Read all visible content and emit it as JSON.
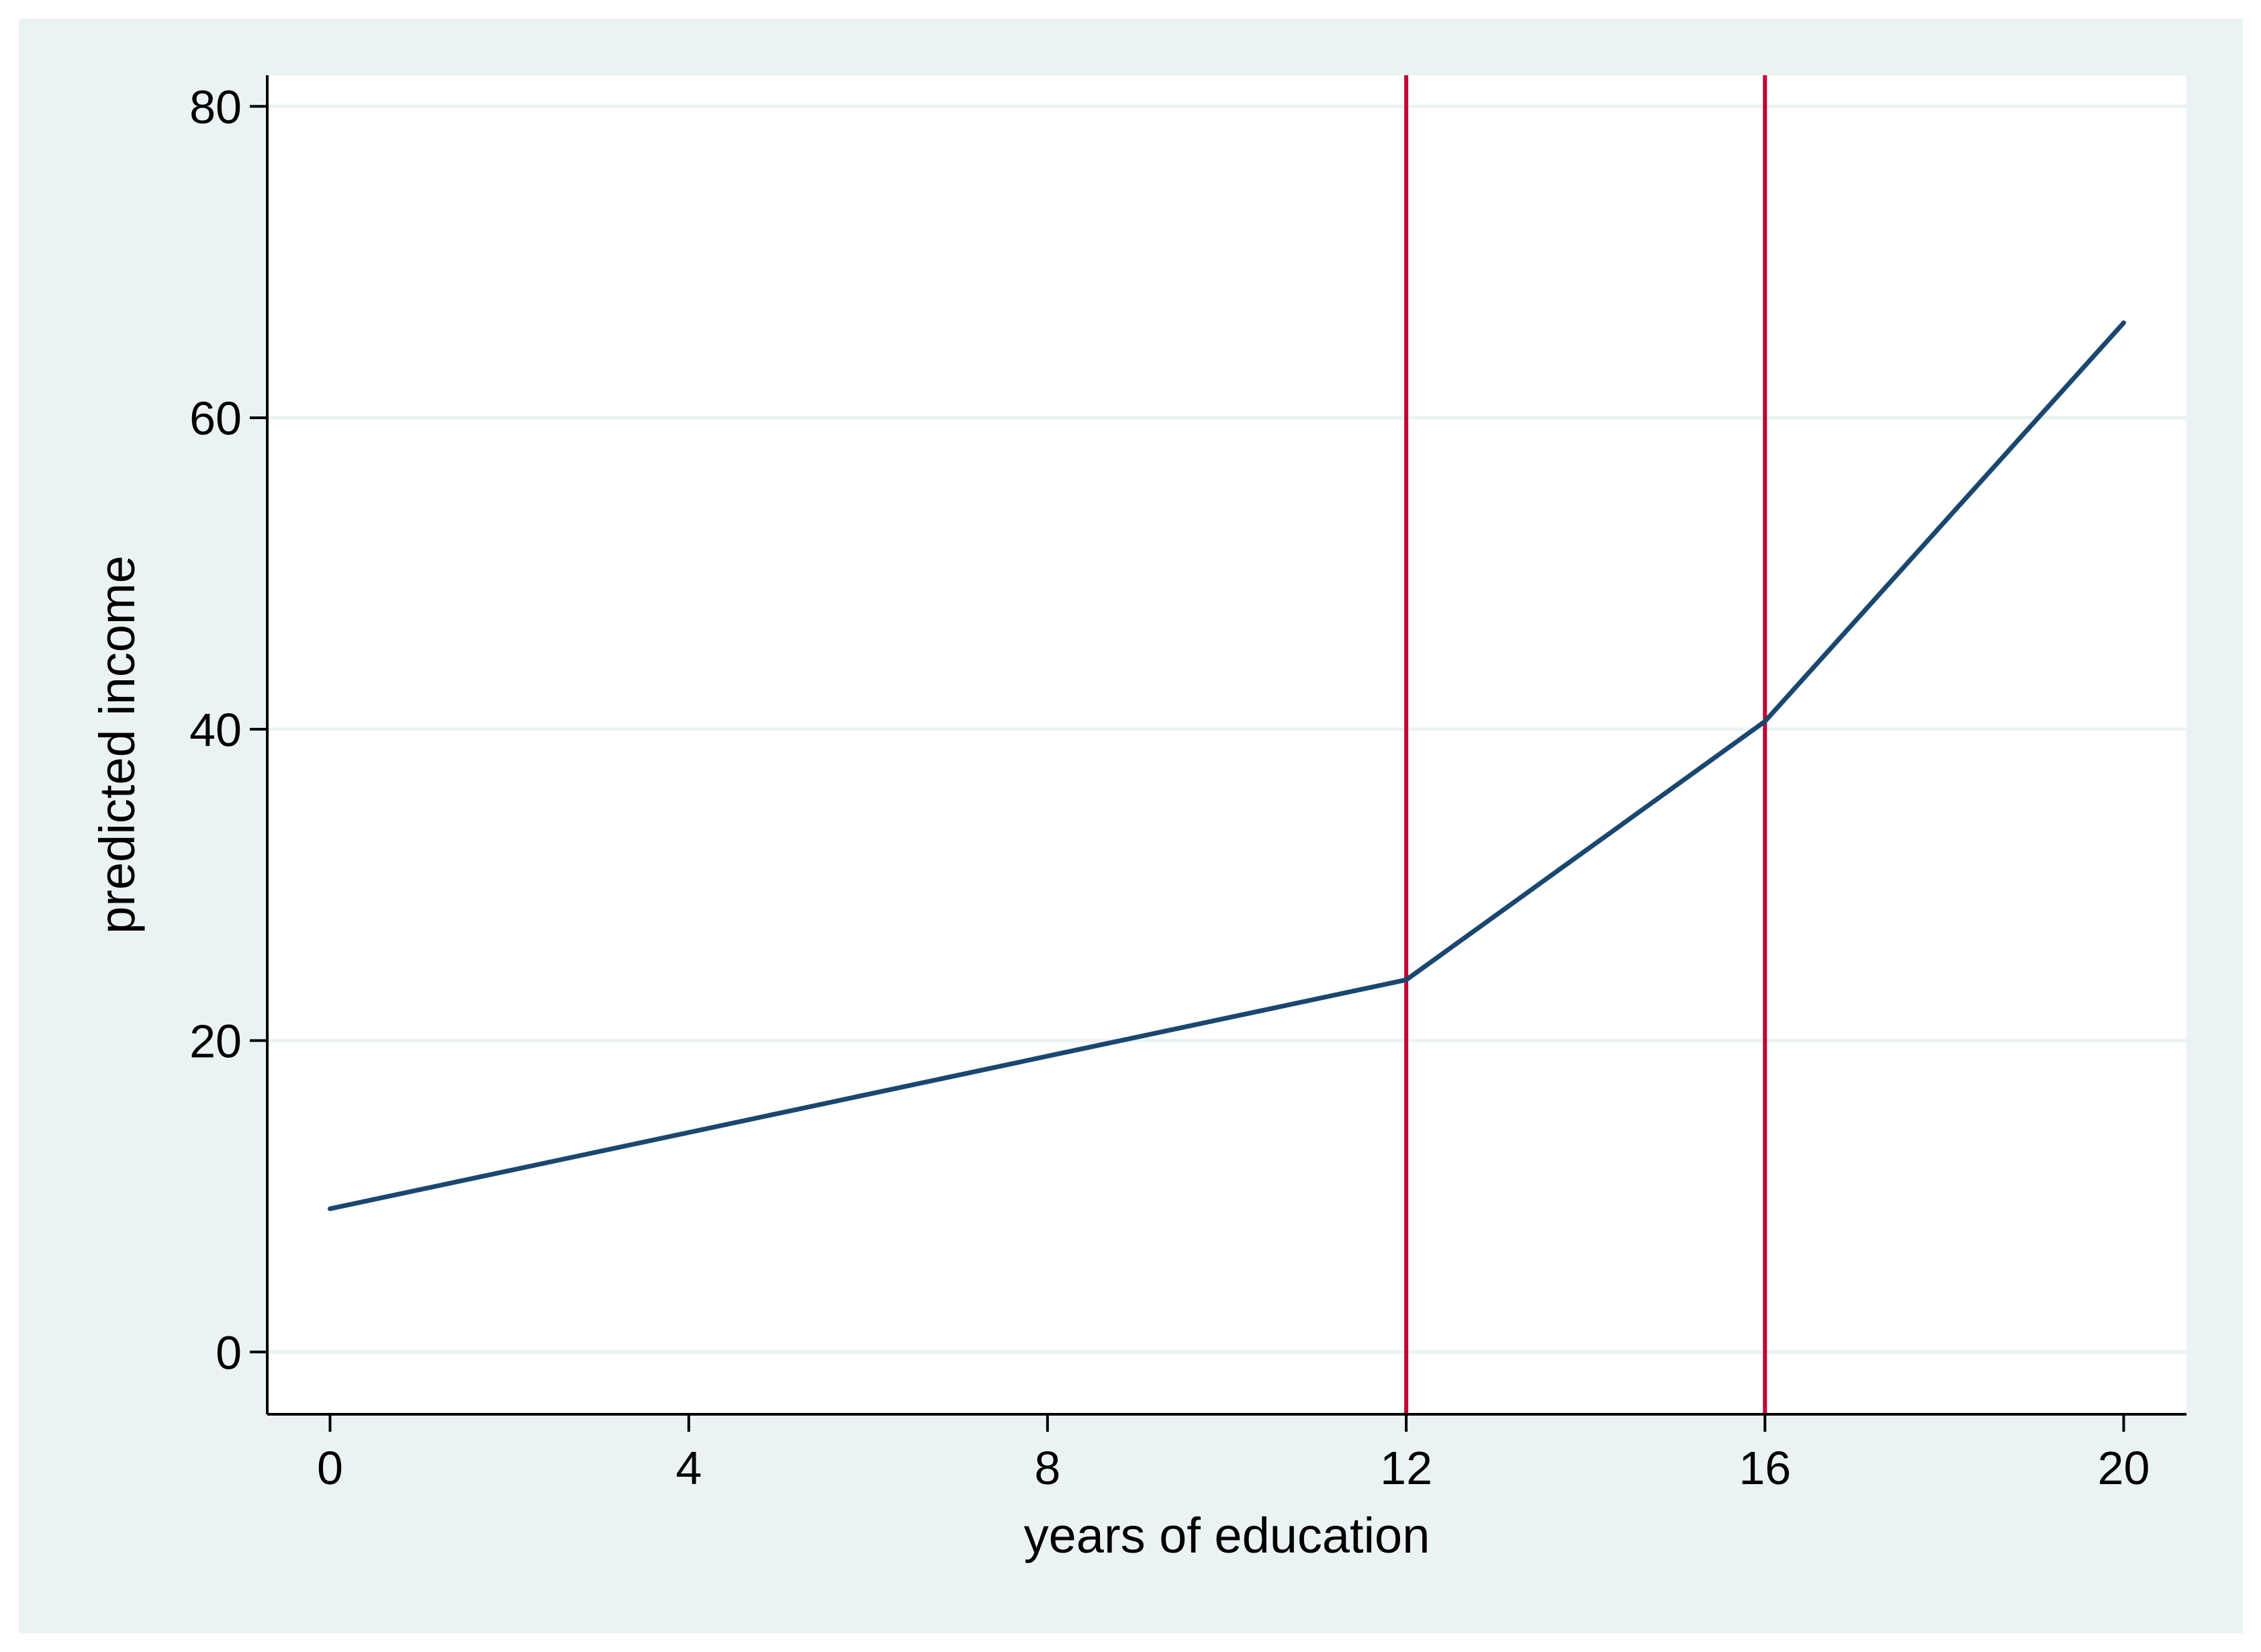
{
  "chart_data": {
    "type": "line",
    "title": "",
    "xlabel": "years of education",
    "ylabel": "predicted income",
    "xlim": [
      -0.7,
      20.7
    ],
    "ylim": [
      -4,
      82
    ],
    "xticks": [
      0,
      4,
      8,
      12,
      16,
      20
    ],
    "yticks": [
      0,
      20,
      40,
      60,
      80
    ],
    "x_tick_labels": [
      "0",
      "4",
      "8",
      "12",
      "16",
      "20"
    ],
    "y_tick_labels": [
      "0",
      "20",
      "40",
      "60",
      "80"
    ],
    "grid": "horizontal",
    "legend": "none",
    "series": [
      {
        "x": [
          0,
          12,
          16,
          20
        ],
        "y": [
          9.2,
          23.9,
          40.5,
          66.1
        ],
        "color": "#1a476f"
      }
    ],
    "reference_lines": [
      {
        "axis": "x",
        "value": 12,
        "color": "#c10534"
      },
      {
        "axis": "x",
        "value": 16,
        "color": "#c10534"
      }
    ],
    "colors": {
      "outer_background": "#eaf2f3",
      "plot_background": "#ffffff",
      "gridline": "#eaf2f3",
      "axis": "#000000"
    }
  }
}
